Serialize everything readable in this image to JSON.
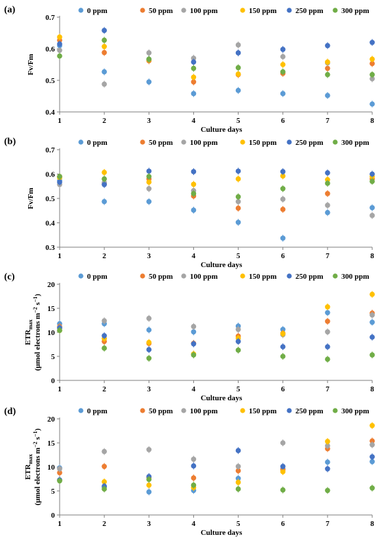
{
  "chart_data": [
    {
      "panel_label": "(a)",
      "type": "scatter",
      "x": [
        1,
        2,
        3,
        4,
        5,
        6,
        7,
        8
      ],
      "xlabel": "Culture days",
      "ylabel": "Fv/Fm",
      "ylabel_parts": [
        "Fv/Fm"
      ],
      "ylim": [
        0.4,
        0.7
      ],
      "yticks": [
        0.4,
        0.5,
        0.6,
        0.7
      ],
      "yticklabels": [
        "0.4",
        "0.5",
        "0.6",
        "0.7"
      ],
      "legend": "top",
      "series": [
        {
          "name": "0 ppm",
          "color": "#5B9BD5",
          "values": [
            0.61,
            0.527,
            0.495,
            0.458,
            0.468,
            0.458,
            0.452,
            0.425
          ]
        },
        {
          "name": "50 ppm",
          "color": "#ED7D31",
          "values": [
            0.627,
            0.588,
            0.562,
            0.495,
            0.518,
            0.522,
            0.538,
            0.553
          ]
        },
        {
          "name": "100 ppm",
          "color": "#A5A5A5",
          "values": [
            0.595,
            0.488,
            0.587,
            0.57,
            0.612,
            0.575,
            0.555,
            0.505
          ]
        },
        {
          "name": "150 ppm",
          "color": "#FFC000",
          "values": [
            0.637,
            0.607,
            0.565,
            0.51,
            0.52,
            0.55,
            0.558,
            0.567
          ]
        },
        {
          "name": "250 ppm",
          "color": "#4472C4",
          "values": [
            0.615,
            0.658,
            0.567,
            0.558,
            0.587,
            0.598,
            0.61,
            0.62
          ]
        },
        {
          "name": "300 ppm",
          "color": "#70AD47",
          "values": [
            0.577,
            0.627,
            0.567,
            0.538,
            0.54,
            0.527,
            0.518,
            0.518
          ]
        }
      ]
    },
    {
      "panel_label": "(b)",
      "type": "scatter",
      "x": [
        1,
        2,
        3,
        4,
        5,
        6,
        7,
        8
      ],
      "xlabel": "Culture days",
      "ylabel": "Fv/Fm",
      "ylabel_parts": [
        "Fv/Fm"
      ],
      "ylim": [
        0.3,
        0.7
      ],
      "yticks": [
        0.3,
        0.4,
        0.5,
        0.6,
        0.7
      ],
      "yticklabels": [
        "0.3",
        "0.4",
        "0.5",
        "0.6",
        "0.7"
      ],
      "legend": "top",
      "series": [
        {
          "name": "0 ppm",
          "color": "#5B9BD5",
          "values": [
            0.573,
            0.487,
            0.487,
            0.452,
            0.402,
            0.337,
            0.442,
            0.462
          ]
        },
        {
          "name": "50 ppm",
          "color": "#ED7D31",
          "values": [
            0.59,
            0.56,
            0.58,
            0.51,
            0.46,
            0.455,
            0.52,
            0.58
          ]
        },
        {
          "name": "100 ppm",
          "color": "#A5A5A5",
          "values": [
            0.557,
            0.565,
            0.54,
            0.532,
            0.487,
            0.497,
            0.472,
            0.43
          ]
        },
        {
          "name": "150 ppm",
          "color": "#FFC000",
          "values": [
            0.585,
            0.607,
            0.567,
            0.558,
            0.58,
            0.592,
            0.577,
            0.59
          ]
        },
        {
          "name": "250 ppm",
          "color": "#4472C4",
          "values": [
            0.567,
            0.557,
            0.612,
            0.61,
            0.612,
            0.61,
            0.605,
            0.6
          ]
        },
        {
          "name": "300 ppm",
          "color": "#70AD47",
          "values": [
            0.59,
            0.58,
            0.59,
            0.52,
            0.507,
            0.54,
            0.562,
            0.57
          ]
        }
      ]
    },
    {
      "panel_label": "(c)",
      "type": "scatter",
      "x": [
        1,
        2,
        3,
        4,
        5,
        6,
        7,
        8
      ],
      "xlabel": "Culture days",
      "ylabel_parts": [
        "ETR",
        "max",
        "(μmol electrons m",
        "−2",
        " s",
        "−1",
        ")"
      ],
      "ylim": [
        0,
        20
      ],
      "yticks": [
        0,
        5,
        10,
        15,
        20
      ],
      "yticklabels": [
        "0",
        "5",
        "10",
        "15",
        "20"
      ],
      "legend": "top",
      "series": [
        {
          "name": "0 ppm",
          "color": "#5B9BD5",
          "values": [
            11.8,
            11.8,
            10.5,
            10.1,
            11.3,
            10.6,
            14.1,
            12.1
          ]
        },
        {
          "name": "50 ppm",
          "color": "#ED7D31",
          "values": [
            11.2,
            8.1,
            7.7,
            7.7,
            9.2,
            9.8,
            12.3,
            14.0
          ]
        },
        {
          "name": "100 ppm",
          "color": "#A5A5A5",
          "values": [
            11.0,
            12.4,
            12.9,
            11.2,
            10.6,
            9.5,
            10.1,
            13.6
          ]
        },
        {
          "name": "150 ppm",
          "color": "#FFC000",
          "values": [
            10.4,
            8.7,
            7.9,
            5.5,
            8.8,
            9.7,
            15.3,
            17.9
          ]
        },
        {
          "name": "250 ppm",
          "color": "#4472C4",
          "values": [
            10.9,
            9.3,
            6.4,
            7.6,
            8.1,
            7.0,
            7.0,
            9.0
          ]
        },
        {
          "name": "300 ppm",
          "color": "#70AD47",
          "values": [
            10.4,
            6.7,
            4.6,
            5.3,
            6.3,
            5.0,
            4.4,
            5.3
          ]
        }
      ]
    },
    {
      "panel_label": "(d)",
      "type": "scatter",
      "x": [
        1,
        2,
        3,
        4,
        5,
        6,
        7,
        8
      ],
      "xlabel": "Culture days",
      "ylabel_parts": [
        "ETR",
        "max",
        "(μmol electrons m",
        "−2",
        " s",
        "−1",
        ")"
      ],
      "ylim": [
        0,
        20
      ],
      "yticks": [
        0,
        5,
        10,
        15,
        20
      ],
      "yticklabels": [
        "0",
        "5",
        "10",
        "15",
        "20"
      ],
      "legend": "top",
      "series": [
        {
          "name": "0 ppm",
          "color": "#5B9BD5",
          "values": [
            9.8,
            5.8,
            4.8,
            5.1,
            7.6,
            9.6,
            11.0,
            11.1
          ]
        },
        {
          "name": "50 ppm",
          "color": "#ED7D31",
          "values": [
            8.8,
            10.1,
            7.8,
            7.7,
            9.2,
            9.4,
            13.8,
            15.4
          ]
        },
        {
          "name": "100 ppm",
          "color": "#A5A5A5",
          "values": [
            9.6,
            13.2,
            13.6,
            11.6,
            10.1,
            15.0,
            14.4,
            14.6
          ]
        },
        {
          "name": "150 ppm",
          "color": "#FFC000",
          "values": [
            7.2,
            6.9,
            6.2,
            5.7,
            6.8,
            9.0,
            15.3,
            18.6
          ]
        },
        {
          "name": "250 ppm",
          "color": "#4472C4",
          "values": [
            7.3,
            6.0,
            8.0,
            10.2,
            13.4,
            10.1,
            9.6,
            12.1
          ]
        },
        {
          "name": "300 ppm",
          "color": "#70AD47",
          "values": [
            7.1,
            5.4,
            7.4,
            6.2,
            5.4,
            5.2,
            5.1,
            5.6
          ]
        }
      ]
    }
  ]
}
